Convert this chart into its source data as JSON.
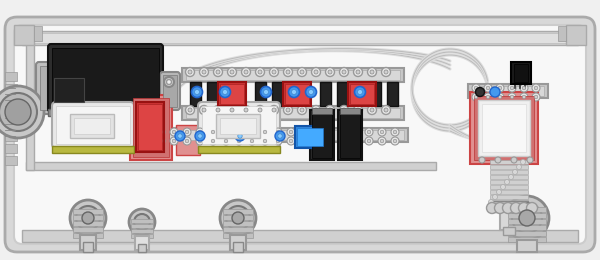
{
  "bg": "#f0f0f0",
  "enclosure_fc": "#e8e8e8",
  "enclosure_ec": "#aaaaaa",
  "panel_fc": "#ffffff",
  "panel_ec": "#cccccc",
  "rail_fc": "#d0d0d0",
  "rail_ec": "#999999",
  "black": "#2a2a2a",
  "dark_gray": "#555555",
  "mid_gray": "#888888",
  "light_gray": "#cccccc",
  "red_fc": "#cc4444",
  "red_bg": "#e09090",
  "blue": "#55aaee",
  "olive": "#b8b840",
  "white_fc": "#f0f0f0",
  "wire_color": "#dddddd",
  "wire_ec": "#bbbbbb"
}
